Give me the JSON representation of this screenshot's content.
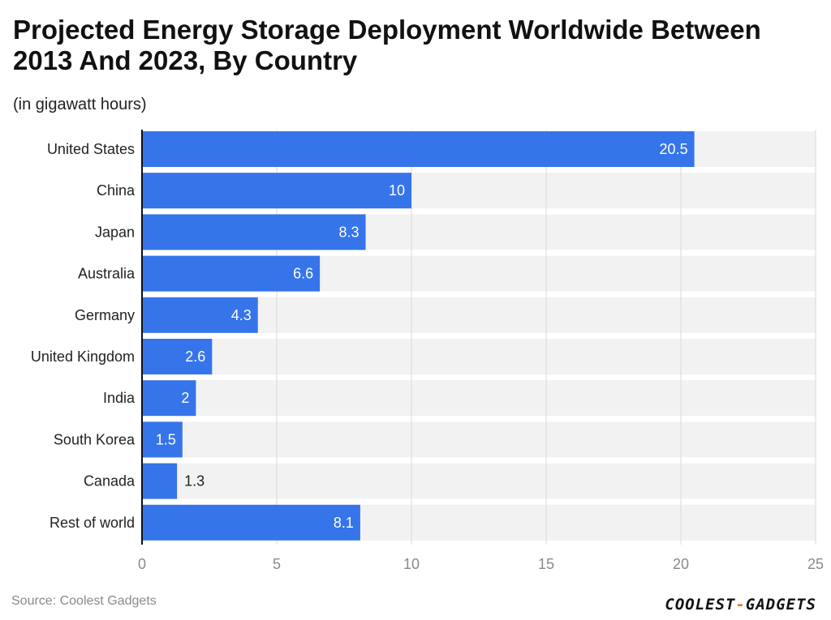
{
  "header": {
    "title": "Projected Energy Storage Deployment Worldwide Between 2013 And 2023, By Country",
    "subtitle": "(in gigawatt hours)"
  },
  "footer": {
    "source": "Source: Coolest Gadgets",
    "brand_part1": "COOLEST",
    "brand_dash": "-",
    "brand_part2": "GADGETS"
  },
  "colors": {
    "bar": "#3674ea",
    "band": "#f2f2f2",
    "grid": "#d9d9d9",
    "axis": "#111111"
  },
  "chart_data": {
    "type": "bar",
    "orientation": "horizontal",
    "title": "Projected Energy Storage Deployment Worldwide Between 2013 And 2023, By Country",
    "unit": "(in gigawatt hours)",
    "categories": [
      "United States",
      "China",
      "Japan",
      "Australia",
      "Germany",
      "United Kingdom",
      "India",
      "South Korea",
      "Canada",
      "Rest of world"
    ],
    "values": [
      20.5,
      10,
      8.3,
      6.6,
      4.3,
      2.6,
      2,
      1.5,
      1.3,
      8.1
    ],
    "value_labels": [
      "20.5",
      "10",
      "8.3",
      "6.6",
      "4.3",
      "2.6",
      "2",
      "1.5",
      "1.3",
      "8.1"
    ],
    "xlim": [
      0,
      25
    ],
    "xticks": [
      0,
      5,
      10,
      15,
      20,
      25
    ],
    "grid": true,
    "legend": "none"
  }
}
